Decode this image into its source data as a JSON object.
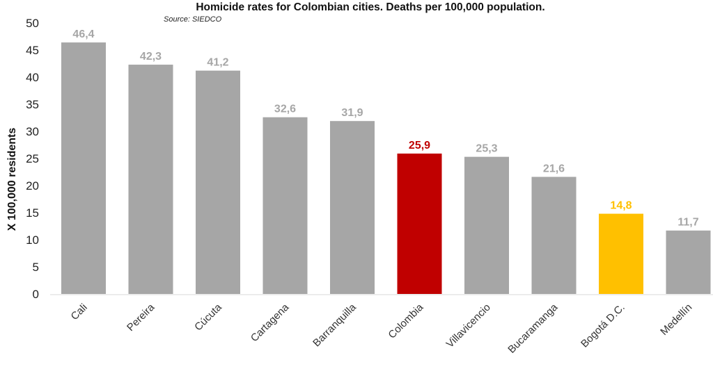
{
  "chart_data": {
    "type": "bar",
    "title": "Homicide rates for Colombian cities. Deaths per 100,000 population.",
    "subtitle": "Source: SIEDCO",
    "xlabel": "",
    "ylabel": "X 100,000 residents",
    "ylim": [
      0,
      50
    ],
    "yticks": [
      0,
      5,
      10,
      15,
      20,
      25,
      30,
      35,
      40,
      45,
      50
    ],
    "grid": false,
    "categories": [
      "Cali",
      "Pereira",
      "Cúcuta",
      "Cartagena",
      "Barranquilla",
      "Colombia",
      "Villavicencio",
      "Bucaramanga",
      "Bogotá D.C.",
      "Medellín"
    ],
    "values": [
      46.4,
      42.3,
      41.2,
      32.6,
      31.9,
      25.9,
      25.3,
      21.6,
      14.8,
      11.7
    ],
    "data_labels": [
      "46,4",
      "42,3",
      "41,2",
      "32,6",
      "31,9",
      "25,9",
      "25,3",
      "21,6",
      "14,8",
      "11,7"
    ],
    "colors": [
      "#a6a6a6",
      "#a6a6a6",
      "#a6a6a6",
      "#a6a6a6",
      "#a6a6a6",
      "#c00000",
      "#a6a6a6",
      "#a6a6a6",
      "#ffc000",
      "#a6a6a6"
    ],
    "label_colors": [
      "#a6a6a6",
      "#a6a6a6",
      "#a6a6a6",
      "#a6a6a6",
      "#a6a6a6",
      "#c00000",
      "#a6a6a6",
      "#a6a6a6",
      "#ffc000",
      "#a6a6a6"
    ]
  }
}
